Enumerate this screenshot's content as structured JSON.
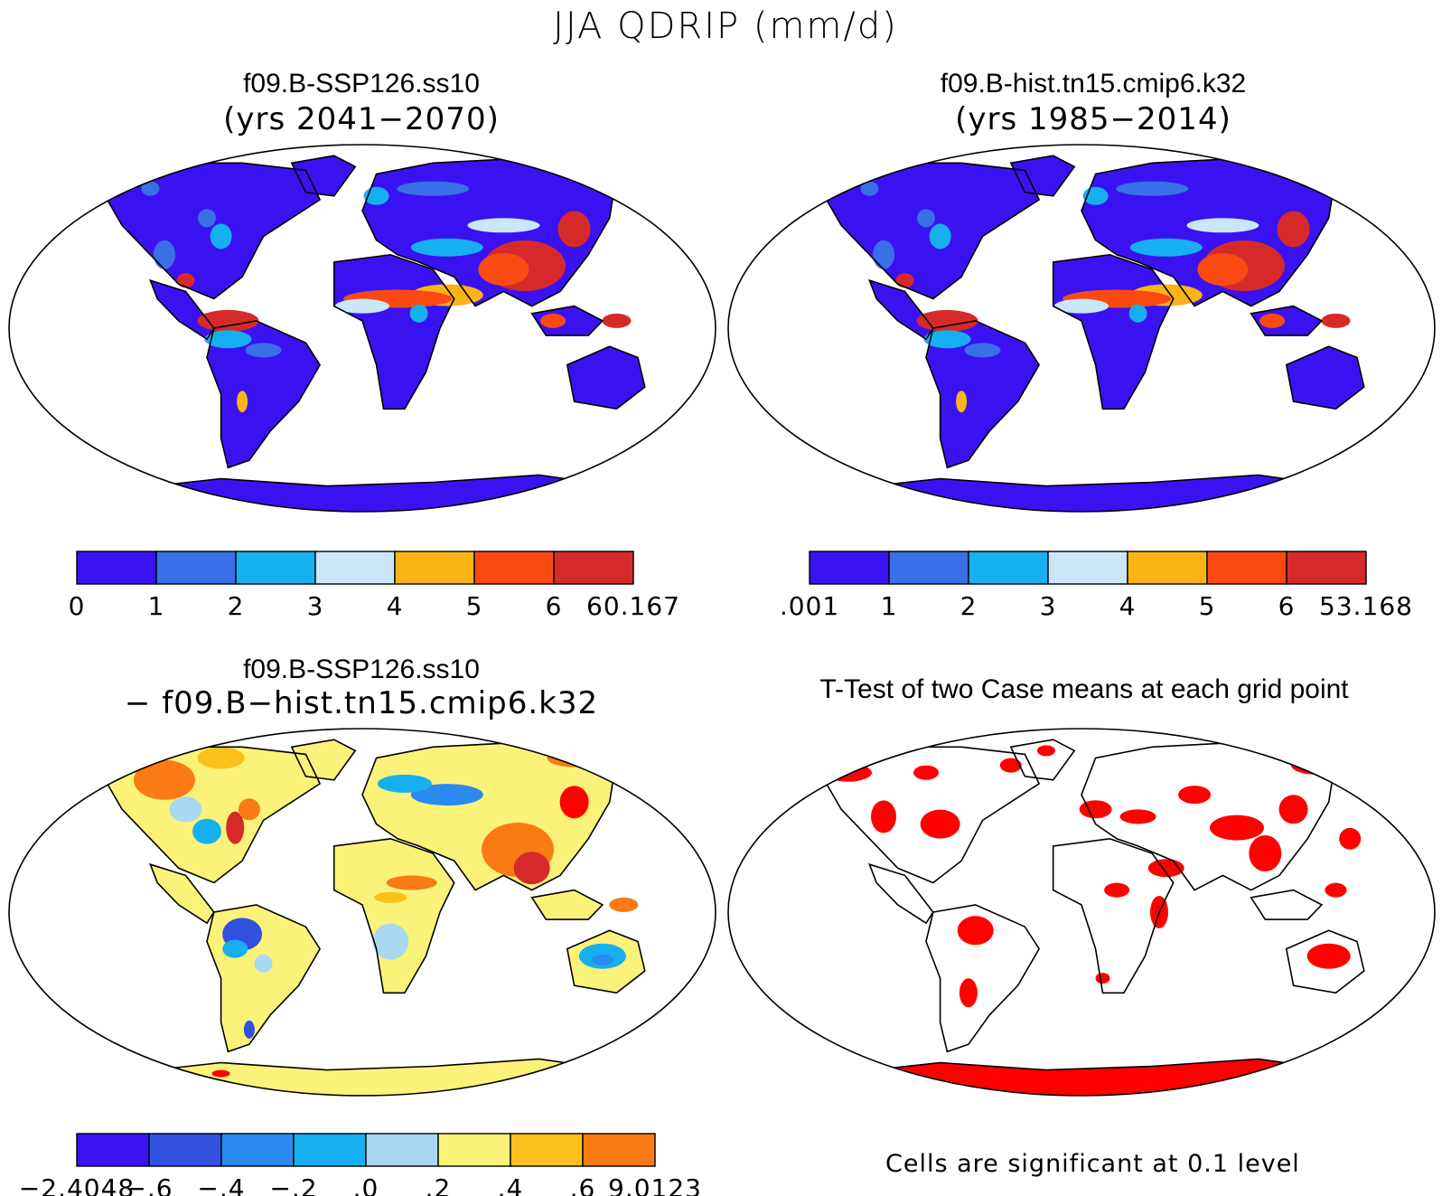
{
  "title": "JJA QDRIP (mm/d)",
  "colors": {
    "scale8": [
      "#3a12f2",
      "#3a6fe8",
      "#16b0f0",
      "#c9e7f8",
      "#fbb416",
      "#fa4a12",
      "#d62a2a"
    ],
    "scale10": [
      "#3a12f2",
      "#3050e0",
      "#2a8af0",
      "#16b0f0",
      "#a8d8f2",
      "#fbf27a",
      "#fbc01c",
      "#fa7a14",
      "#ff0000",
      "#d62a2a"
    ],
    "land_blue": "#3a12f2",
    "land_yellow": "#fbf27a",
    "signif": "#ff0000",
    "coast": "#000000"
  },
  "panels": [
    {
      "id": "tl",
      "title": "f09.B-SSP126.ss10",
      "subtitle": "(yrs 2041−2070)",
      "kind": "abs",
      "colorbar": {
        "labels": [
          "0",
          "1",
          "2",
          "3",
          "4",
          "5",
          "6",
          "60.167"
        ]
      }
    },
    {
      "id": "tr",
      "title": "f09.B-hist.tn15.cmip6.k32",
      "subtitle": "(yrs 1985−2014)",
      "kind": "abs",
      "colorbar": {
        "labels": [
          ".001",
          "1",
          "2",
          "3",
          "4",
          "5",
          "6",
          "53.168"
        ]
      }
    },
    {
      "id": "bl",
      "title": "f09.B-SSP126.ss10",
      "subtitle": "− f09.B−hist.tn15.cmip6.k32",
      "kind": "diff",
      "colorbar": {
        "labels": [
          "−2.4048",
          "−.6",
          "−.4",
          "−.2",
          ".0",
          ".2",
          ".4",
          ".6",
          "9.0123"
        ]
      }
    },
    {
      "id": "br",
      "title": "T-Test of two Case means at each grid point",
      "kind": "ttest",
      "note": "Cells are significant at 0.1 level"
    }
  ]
}
